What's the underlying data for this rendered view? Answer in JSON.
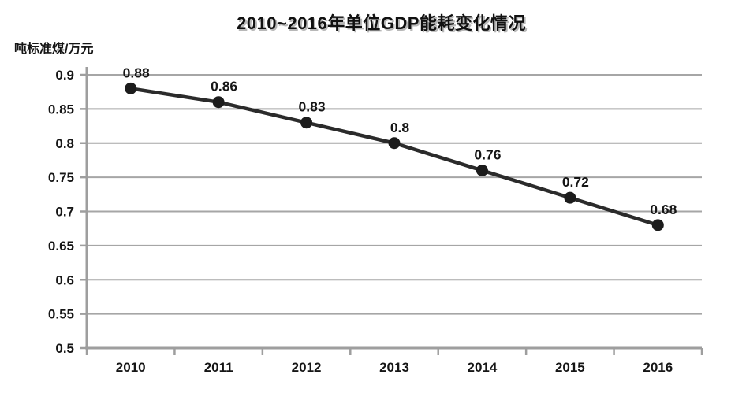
{
  "chart_data": {
    "type": "line",
    "title": "2010~2016年单位GDP能耗变化情况",
    "ylabel": "吨标准煤/万元",
    "xlabel": "",
    "categories": [
      "2010",
      "2011",
      "2012",
      "2013",
      "2014",
      "2015",
      "2016"
    ],
    "values": [
      0.88,
      0.86,
      0.83,
      0.8,
      0.76,
      0.72,
      0.68
    ],
    "point_labels": [
      "0.88",
      "0.86",
      "0.83",
      "0.8",
      "0.76",
      "0.72",
      "0.68"
    ],
    "ylim": [
      0.5,
      0.9
    ],
    "ytick_values": [
      0.5,
      0.55,
      0.6,
      0.65,
      0.7,
      0.75,
      0.8,
      0.85,
      0.9
    ],
    "ytick_labels": [
      "0.5",
      "0.55",
      "0.6",
      "0.65",
      "0.7",
      "0.75",
      "0.8",
      "0.85",
      "0.9"
    ],
    "grid": "horizontal",
    "legend": "none",
    "colors": {
      "line": "#2b2b2b",
      "marker": "#1c1c1c",
      "grid": "#a6a6a6",
      "axis": "#9e9e9e",
      "text": "#161616"
    }
  }
}
